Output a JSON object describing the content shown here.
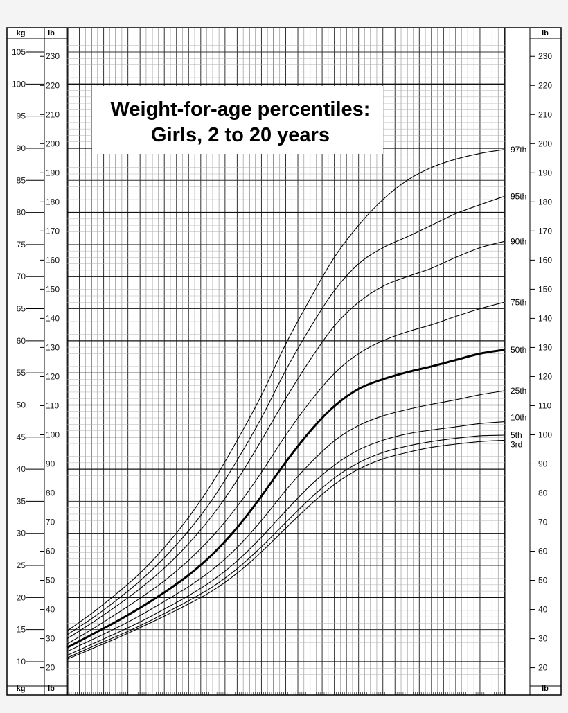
{
  "chart_data": {
    "type": "line",
    "title": [
      "Weight-for-age percentiles:",
      "Girls, 2 to 20 years"
    ],
    "x_unit": "years",
    "y_unit_primary": "kg",
    "y_unit_secondary": "lb",
    "xlim": [
      2,
      20
    ],
    "ylim_kg": [
      7.5,
      107.5
    ],
    "yticks_kg": [
      10,
      15,
      20,
      25,
      30,
      35,
      40,
      45,
      50,
      55,
      60,
      65,
      70,
      75,
      80,
      85,
      90,
      95,
      100,
      105
    ],
    "yticks_lb": [
      20,
      30,
      40,
      50,
      60,
      70,
      80,
      90,
      100,
      110,
      120,
      130,
      140,
      150,
      160,
      170,
      180,
      190,
      200,
      210,
      220,
      230
    ],
    "axis_units": {
      "left_kg_top": "kg",
      "left_lb_top": "lb",
      "right_lb_top": "lb",
      "left_kg_bottom": "kg",
      "left_lb_bottom": "lb",
      "right_lb_bottom": "lb"
    },
    "grid": true,
    "x": [
      2,
      3,
      4,
      5,
      6,
      7,
      8,
      9,
      10,
      11,
      12,
      13,
      14,
      15,
      16,
      17,
      18,
      19,
      20
    ],
    "series": [
      {
        "name": "97th",
        "values": [
          14.8,
          17.5,
          20.5,
          23.8,
          27.8,
          32.5,
          38.0,
          44.5,
          51.5,
          59.5,
          66.5,
          73.0,
          78.0,
          82.0,
          85.0,
          87.0,
          88.3,
          89.2,
          89.8
        ]
      },
      {
        "name": "95th",
        "values": [
          14.2,
          16.7,
          19.5,
          22.6,
          26.2,
          30.4,
          35.4,
          41.4,
          48.0,
          55.4,
          62.0,
          67.8,
          72.0,
          74.5,
          76.2,
          78.0,
          79.8,
          81.2,
          82.5
        ]
      },
      {
        "name": "90th",
        "values": [
          13.6,
          16.0,
          18.6,
          21.4,
          24.6,
          28.4,
          32.9,
          38.3,
          44.5,
          51.0,
          57.0,
          62.3,
          66.0,
          68.5,
          70.0,
          71.3,
          73.0,
          74.5,
          75.5
        ]
      },
      {
        "name": "75th",
        "values": [
          12.8,
          15.0,
          17.4,
          19.9,
          22.6,
          25.8,
          29.6,
          34.2,
          39.5,
          45.3,
          50.5,
          54.9,
          58.0,
          60.0,
          61.4,
          62.5,
          63.8,
          65.0,
          66.0
        ]
      },
      {
        "name": "50th",
        "values": [
          12.2,
          14.2,
          16.2,
          18.4,
          20.8,
          23.5,
          26.8,
          30.9,
          35.8,
          41.1,
          45.9,
          49.8,
          52.5,
          54.0,
          55.1,
          56.0,
          57.0,
          58.0,
          58.6
        ]
      },
      {
        "name": "25th",
        "values": [
          11.6,
          13.4,
          15.2,
          17.2,
          19.4,
          21.7,
          24.4,
          27.8,
          32.0,
          36.7,
          40.9,
          44.4,
          46.8,
          48.3,
          49.3,
          50.1,
          50.8,
          51.6,
          52.2
        ]
      },
      {
        "name": "10th",
        "values": [
          11.0,
          12.7,
          14.4,
          16.2,
          18.2,
          20.3,
          22.7,
          25.7,
          29.4,
          33.5,
          37.4,
          40.6,
          43.0,
          44.5,
          45.5,
          46.1,
          46.6,
          47.1,
          47.4
        ]
      },
      {
        "name": "5th",
        "values": [
          10.6,
          12.3,
          13.9,
          15.6,
          17.5,
          19.5,
          21.7,
          24.5,
          27.9,
          31.7,
          35.4,
          38.6,
          41.0,
          42.6,
          43.6,
          44.3,
          44.8,
          45.2,
          45.3
        ]
      },
      {
        "name": "3rd",
        "values": [
          10.4,
          12.0,
          13.6,
          15.3,
          17.1,
          19.0,
          21.1,
          23.8,
          27.1,
          30.8,
          34.4,
          37.6,
          40.0,
          41.6,
          42.6,
          43.4,
          43.9,
          44.3,
          44.5
        ]
      }
    ],
    "emphasized_series": "50th"
  }
}
